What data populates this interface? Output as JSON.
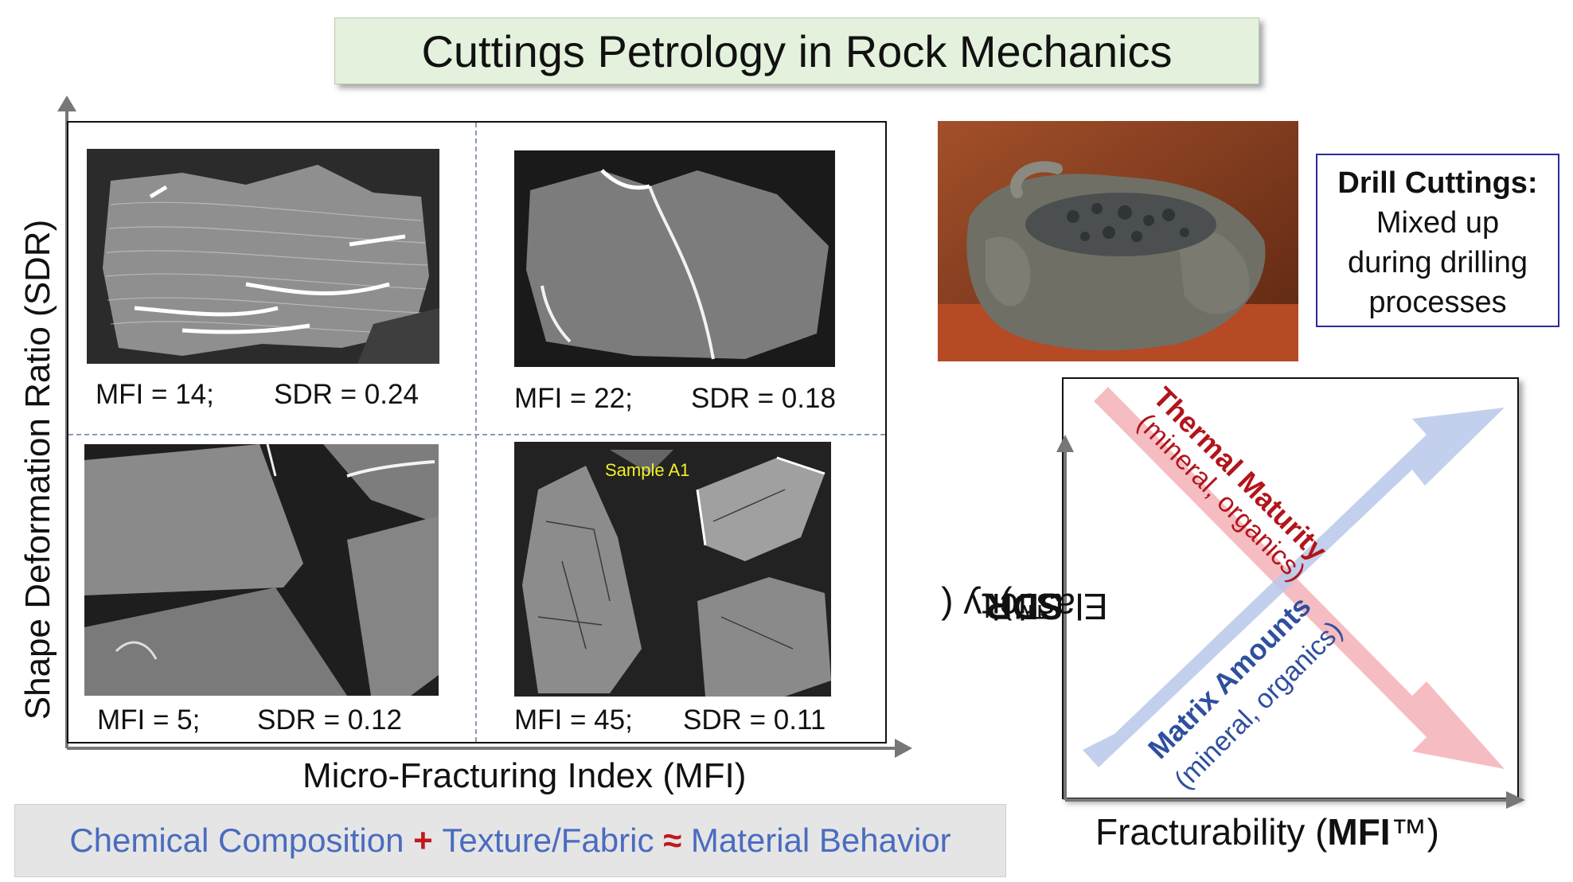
{
  "title": "Cuttings Petrology in Rock Mechanics",
  "left_panel": {
    "y_axis_label": "Shape Deformation Ratio (SDR)",
    "x_axis_label": "Micro-Fracturing Index (MFI)",
    "quadrants": [
      {
        "mfi": "MFI = 14;",
        "sdr": "SDR = 0.24"
      },
      {
        "mfi": "MFI = 22;",
        "sdr": "SDR = 0.18"
      },
      {
        "mfi": "MFI = 5;",
        "sdr": "SDR = 0.12"
      },
      {
        "mfi": "MFI = 45;",
        "sdr": "SDR = 0.11"
      }
    ],
    "sample_label": "Sample A1"
  },
  "formula": {
    "term1": "Chemical Composition",
    "op1": "+",
    "term2": "Texture/Fabric",
    "op2": "≈",
    "term3": "Material Behavior"
  },
  "drill_box": {
    "title": "Drill Cuttings:",
    "line1": "Mixed up",
    "line2": "during drilling",
    "line3": "processes"
  },
  "right_panel": {
    "y_label_prefix": "Elasticity (",
    "y_label_bold": "SDR",
    "y_label_suffix": "™)",
    "x_label_prefix": "Fracturability (",
    "x_label_bold": "MFI",
    "x_label_suffix": "™)",
    "thermal_title": "Thermal Maturity",
    "thermal_sub": "(mineral, organics)",
    "matrix_title": "Matrix Amounts",
    "matrix_sub": "(mineral, organics)"
  },
  "colors": {
    "red_arrow": "#f4b6bb",
    "blue_arrow": "#b7c8ea",
    "red_text": "#b3141c",
    "blue_text": "#2f4f9e",
    "formula_blue": "#4a6cc0"
  }
}
